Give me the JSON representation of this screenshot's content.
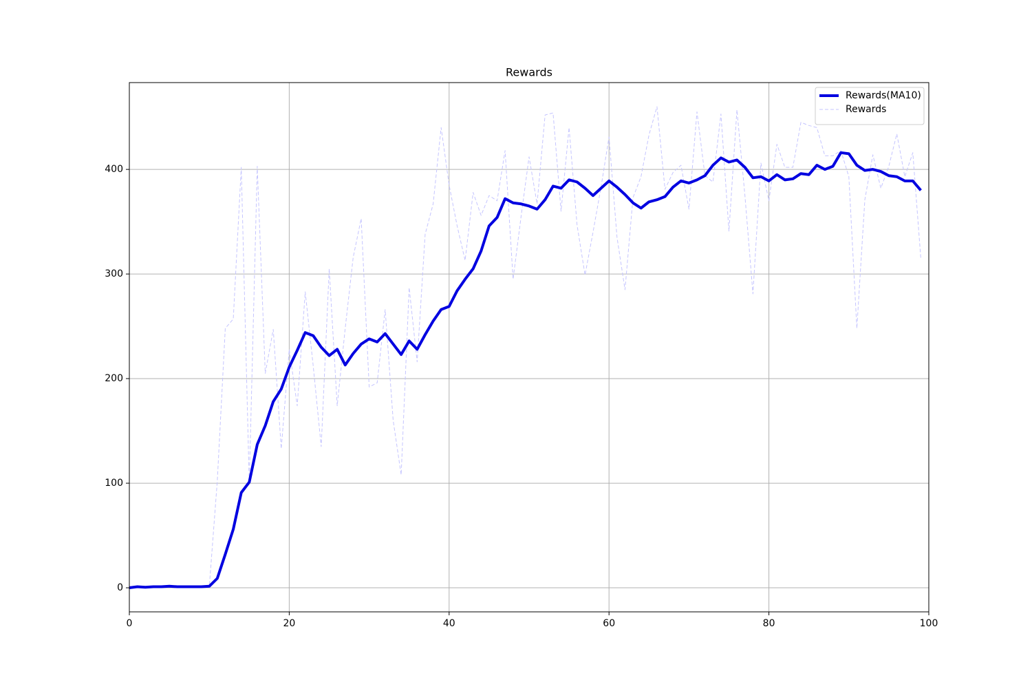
{
  "chart_data": {
    "type": "line",
    "title": "Rewards",
    "x": [
      0,
      1,
      2,
      3,
      4,
      5,
      6,
      7,
      8,
      9,
      10,
      11,
      12,
      13,
      14,
      15,
      16,
      17,
      18,
      19,
      20,
      21,
      22,
      23,
      24,
      25,
      26,
      27,
      28,
      29,
      30,
      31,
      32,
      33,
      34,
      35,
      36,
      37,
      38,
      39,
      40,
      41,
      42,
      43,
      44,
      45,
      46,
      47,
      48,
      49,
      50,
      51,
      52,
      53,
      54,
      55,
      56,
      57,
      58,
      59,
      60,
      61,
      62,
      63,
      64,
      65,
      66,
      67,
      68,
      69,
      70,
      71,
      72,
      73,
      74,
      75,
      76,
      77,
      78,
      79,
      80,
      81,
      82,
      83,
      84,
      85,
      86,
      87,
      88,
      89,
      90,
      91,
      92,
      93,
      94,
      95,
      96,
      97,
      98,
      99
    ],
    "series": [
      {
        "name": "Rewards(MA10)",
        "color": "#0000e0",
        "linestyle": "solid",
        "linewidth": 4,
        "values": [
          0,
          1,
          0.5,
          1,
          1,
          1.5,
          1,
          1,
          1,
          1,
          1.5,
          9,
          32,
          56,
          91,
          101,
          137,
          155,
          178,
          190,
          211,
          227,
          244,
          241,
          230,
          222,
          228,
          213,
          224,
          233,
          238,
          235,
          243,
          233,
          223,
          236,
          228,
          242,
          255,
          266,
          269,
          284,
          295,
          305,
          322,
          346,
          354,
          372,
          368,
          367,
          365,
          362,
          371,
          384,
          382,
          390,
          388,
          382,
          375,
          382,
          389,
          383,
          376,
          368,
          363,
          369,
          371,
          374,
          383,
          389,
          387,
          390,
          394,
          404,
          411,
          407,
          409,
          402,
          392,
          393,
          389,
          395,
          390,
          391,
          396,
          395,
          404,
          400,
          403,
          416,
          415,
          404,
          399,
          400,
          398,
          394,
          393,
          389,
          389,
          380
        ]
      },
      {
        "name": "Rewards",
        "color": "#c4c4ff",
        "linestyle": "dashed",
        "linewidth": 1,
        "values": [
          0,
          1,
          0,
          1,
          1,
          2,
          1,
          1,
          1,
          1,
          1,
          102,
          248,
          257,
          402,
          100,
          403,
          205,
          247,
          133,
          228,
          174,
          283,
          212,
          135,
          305,
          174,
          248,
          316,
          353,
          192,
          196,
          266,
          160,
          108,
          287,
          216,
          338,
          367,
          440,
          385,
          346,
          313,
          378,
          356,
          375,
          370,
          418,
          295,
          355,
          412,
          367,
          452,
          454,
          360,
          440,
          347,
          299,
          340,
          383,
          431,
          335,
          285,
          373,
          393,
          433,
          460,
          381,
          397,
          404,
          362,
          455,
          394,
          388,
          453,
          341,
          457,
          375,
          281,
          406,
          370,
          424,
          402,
          402,
          445,
          442,
          440,
          413,
          413,
          418,
          393,
          248,
          371,
          414,
          382,
          403,
          434,
          393,
          416,
          315
        ]
      }
    ],
    "xlim": [
      0,
      100
    ],
    "xticks": [
      0,
      20,
      40,
      60,
      80,
      100
    ],
    "ylim": [
      -23,
      483
    ],
    "yticks": [
      0,
      100,
      200,
      300,
      400
    ],
    "grid": true,
    "legend": "upper right"
  }
}
